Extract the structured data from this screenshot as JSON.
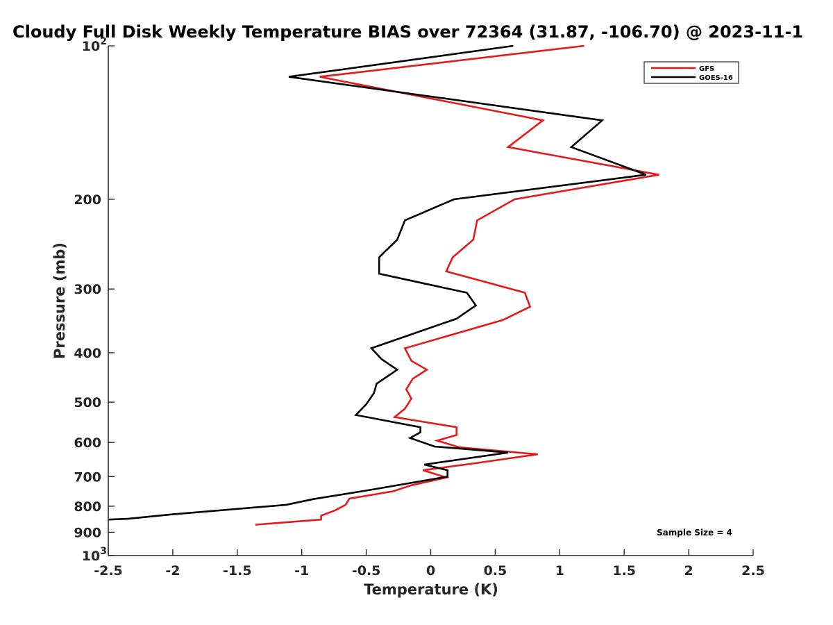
{
  "chart_data": {
    "type": "line",
    "title": "Cloudy Full Disk Weekly Temperature BIAS over 72364 (31.87, -106.70) @ 2023-11-1",
    "xlabel": "Temperature (K)",
    "ylabel": "Pressure (mb)",
    "xlim": [
      -2.5,
      2.5
    ],
    "ylim": [
      100,
      1000
    ],
    "y_scale": "log",
    "y_reversed": true,
    "grid": false,
    "legend_position": "top-right",
    "x_ticks": [
      -2.5,
      -2,
      -1.5,
      -1,
      -0.5,
      0,
      0.5,
      1,
      1.5,
      2,
      2.5
    ],
    "x_tick_labels": [
      "-2.5",
      "-2",
      "-1.5",
      "-1",
      "-0.5",
      "0",
      "0.5",
      "1",
      "1.5",
      "2",
      "2.5"
    ],
    "y_ticks": [
      100,
      200,
      300,
      400,
      500,
      600,
      700,
      800,
      900,
      1000
    ],
    "y_tick_labels": [
      {
        "base": "10",
        "exp": "2"
      },
      {
        "base": "200",
        "exp": ""
      },
      {
        "base": "300",
        "exp": ""
      },
      {
        "base": "400",
        "exp": ""
      },
      {
        "base": "500",
        "exp": ""
      },
      {
        "base": "600",
        "exp": ""
      },
      {
        "base": "700",
        "exp": ""
      },
      {
        "base": "800",
        "exp": ""
      },
      {
        "base": "900",
        "exp": ""
      },
      {
        "base": "10",
        "exp": "3"
      }
    ],
    "annotation": "Sample Size = 4",
    "series": [
      {
        "name": "GFS",
        "color": "#e31a1c",
        "points": [
          [
            1.19,
            100
          ],
          [
            -0.86,
            115
          ],
          [
            0.87,
            140
          ],
          [
            0.6,
            158
          ],
          [
            1.77,
            179
          ],
          [
            0.65,
            200
          ],
          [
            0.36,
            220
          ],
          [
            0.33,
            240
          ],
          [
            0.17,
            260
          ],
          [
            0.12,
            277
          ],
          [
            0.73,
            305
          ],
          [
            0.77,
            325
          ],
          [
            0.56,
            345
          ],
          [
            -0.2,
            392
          ],
          [
            -0.15,
            415
          ],
          [
            -0.03,
            432
          ],
          [
            -0.14,
            450
          ],
          [
            -0.19,
            472
          ],
          [
            -0.15,
            492
          ],
          [
            -0.2,
            515
          ],
          [
            -0.28,
            535
          ],
          [
            0.2,
            560
          ],
          [
            0.2,
            580
          ],
          [
            0.05,
            595
          ],
          [
            0.22,
            613
          ],
          [
            0.83,
            633
          ],
          [
            0.36,
            658
          ],
          [
            -0.06,
            680
          ],
          [
            0.12,
            703
          ],
          [
            -0.15,
            728
          ],
          [
            -0.29,
            748
          ],
          [
            -0.63,
            773
          ],
          [
            -0.66,
            795
          ],
          [
            -0.74,
            815
          ],
          [
            -0.85,
            835
          ],
          [
            -0.85,
            850
          ],
          [
            -1.36,
            870
          ]
        ]
      },
      {
        "name": "GOES-16",
        "color": "#000000",
        "points": [
          [
            0.64,
            100
          ],
          [
            -1.1,
            115
          ],
          [
            1.33,
            140
          ],
          [
            1.09,
            158
          ],
          [
            1.67,
            179
          ],
          [
            0.18,
            200
          ],
          [
            -0.2,
            220
          ],
          [
            -0.26,
            240
          ],
          [
            -0.4,
            260
          ],
          [
            -0.4,
            280
          ],
          [
            0.28,
            305
          ],
          [
            0.35,
            323
          ],
          [
            0.2,
            343
          ],
          [
            -0.46,
            392
          ],
          [
            -0.38,
            412
          ],
          [
            -0.26,
            432
          ],
          [
            -0.42,
            460
          ],
          [
            -0.44,
            480
          ],
          [
            -0.5,
            505
          ],
          [
            -0.58,
            530
          ],
          [
            -0.08,
            560
          ],
          [
            -0.08,
            573
          ],
          [
            -0.16,
            588
          ],
          [
            0.03,
            611
          ],
          [
            0.6,
            628
          ],
          [
            -0.05,
            663
          ],
          [
            0.13,
            680
          ],
          [
            0.13,
            700
          ],
          [
            -0.45,
            742
          ],
          [
            -0.91,
            775
          ],
          [
            -1.12,
            795
          ],
          [
            -2.0,
            830
          ],
          [
            -2.35,
            847
          ],
          [
            -2.5,
            850
          ]
        ]
      }
    ]
  }
}
